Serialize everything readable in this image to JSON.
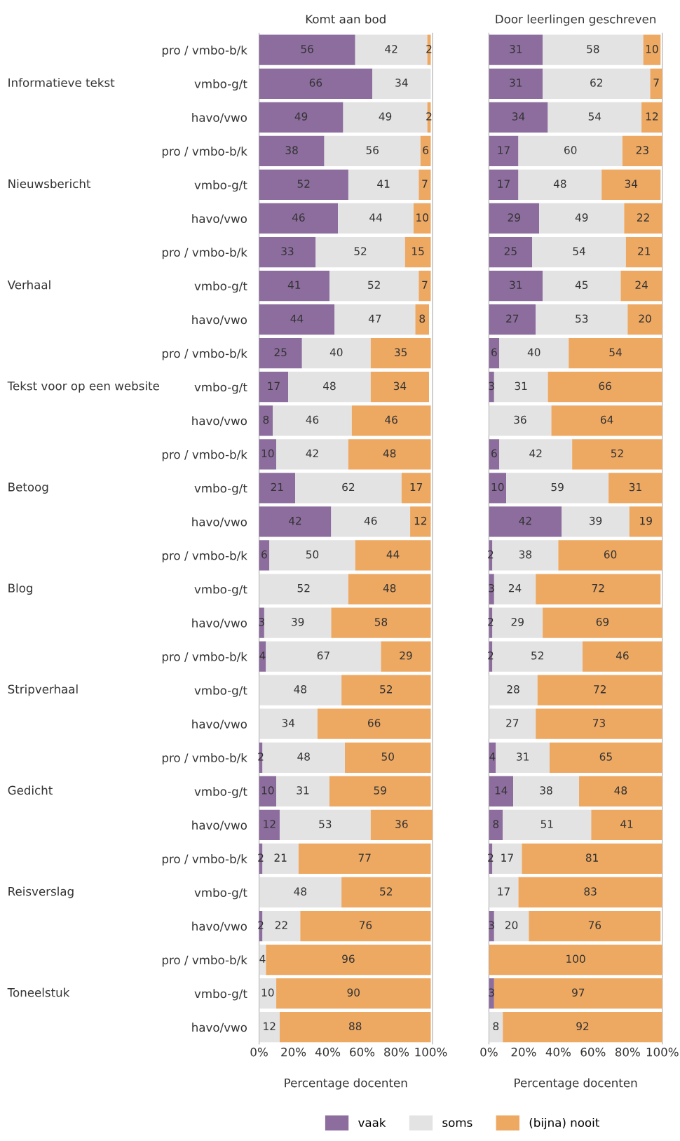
{
  "chart_data": [
    {
      "type": "bar",
      "orientation": "horizontal",
      "stacked": true,
      "title": "Komt aan bod",
      "xlabel": "Percentage docenten",
      "categories": [
        "pro / vmbo-b/k",
        "vmbo-g/t",
        "havo/vwo",
        "pro / vmbo-b/k",
        "vmbo-g/t",
        "havo/vwo",
        "pro / vmbo-b/k",
        "vmbo-g/t",
        "havo/vwo",
        "pro / vmbo-b/k",
        "vmbo-g/t",
        "havo/vwo",
        "pro / vmbo-b/k",
        "vmbo-g/t",
        "havo/vwo",
        "pro / vmbo-b/k",
        "vmbo-g/t",
        "havo/vwo",
        "pro / vmbo-b/k",
        "vmbo-g/t",
        "havo/vwo",
        "pro / vmbo-b/k",
        "vmbo-g/t",
        "havo/vwo",
        "pro / vmbo-b/k",
        "vmbo-g/t",
        "havo/vwo",
        "pro / vmbo-b/k",
        "vmbo-g/t",
        "havo/vwo"
      ],
      "annotations": [
        "Informatieve tekst",
        "Nieuwsbericht",
        "Verhaal",
        "Tekst voor op een website",
        "Betoog",
        "Blog",
        "Stripverhaal",
        "Gedicht",
        "Reisverslag",
        "Toneelstuk"
      ],
      "xlim": [
        0,
        101
      ],
      "xticks": [
        {
          "value": 0,
          "label": "0%"
        },
        {
          "value": 20,
          "label": "20%"
        },
        {
          "value": 40,
          "label": "40%"
        },
        {
          "value": 60,
          "label": "60%"
        },
        {
          "value": 80,
          "label": "80%"
        },
        {
          "value": 100,
          "label": "100%"
        }
      ],
      "series": [
        {
          "color": "#8c6d9e",
          "values": [
            56,
            66,
            49,
            38,
            52,
            46,
            33,
            41,
            44,
            25,
            17,
            8,
            10,
            21,
            42,
            6,
            0,
            3,
            4,
            0,
            0,
            2,
            10,
            12,
            2,
            0,
            2,
            0,
            0,
            0
          ],
          "value_labels": [
            "56",
            "66",
            "49",
            "38",
            "52",
            "46",
            "33",
            "41",
            "44",
            "25",
            "17",
            "8",
            "10",
            "21",
            "42",
            "6",
            null,
            "3",
            "4",
            null,
            null,
            "2",
            "10",
            "12",
            "2",
            null,
            "2",
            null,
            null,
            null
          ]
        },
        {
          "color": "#e3e3e3",
          "values": [
            42,
            34,
            49,
            56,
            41,
            44,
            52,
            52,
            47,
            40,
            48,
            46,
            42,
            62,
            46,
            50,
            52,
            39,
            67,
            48,
            34,
            48,
            31,
            53,
            21,
            48,
            22,
            4,
            10,
            12
          ],
          "value_labels": [
            "42",
            "34",
            "49",
            "56",
            "41",
            "44",
            "52",
            "52",
            "47",
            "40",
            "48",
            "46",
            "42",
            "62",
            "46",
            "50",
            "52",
            "39",
            "67",
            "48",
            "34",
            "48",
            "31",
            "53",
            "21",
            "48",
            "22",
            "4",
            "10",
            "12"
          ]
        },
        {
          "color": "#eda862",
          "values": [
            2,
            0,
            2,
            6,
            7,
            10,
            15,
            7,
            8,
            35,
            34,
            46,
            48,
            17,
            12,
            44,
            48,
            58,
            29,
            52,
            66,
            50,
            59,
            36,
            77,
            52,
            76,
            96,
            90,
            88
          ],
          "value_labels": [
            "2",
            null,
            "2",
            "6",
            "7",
            "10",
            "15",
            "7",
            "8",
            "35",
            "34",
            "46",
            "48",
            "17",
            "12",
            "44",
            "48",
            "58",
            "29",
            "52",
            "66",
            "50",
            "59",
            "36",
            "77",
            "52",
            "76",
            "96",
            "90",
            "88"
          ]
        }
      ]
    },
    {
      "type": "bar",
      "orientation": "horizontal",
      "stacked": true,
      "title": "Door leerlingen geschreven",
      "xlabel": "Percentage docenten",
      "tick_labels": "x",
      "legend": "bottom",
      "categories": [
        null,
        null,
        null,
        null,
        null,
        null,
        null,
        null,
        null,
        null,
        null,
        null,
        null,
        null,
        null,
        null,
        null,
        null,
        null,
        null,
        null,
        null,
        null,
        null,
        null,
        null,
        null,
        null,
        null,
        null
      ],
      "xlim": [
        0,
        100
      ],
      "xticks": [
        {
          "value": 0,
          "label": "0%"
        },
        {
          "value": 20,
          "label": "20%"
        },
        {
          "value": 40,
          "label": "40%"
        },
        {
          "value": 60,
          "label": "60%"
        },
        {
          "value": 80,
          "label": "80%"
        },
        {
          "value": 100,
          "label": "100%"
        }
      ],
      "series": [
        {
          "name": "vaak",
          "color": "#8c6d9e",
          "values": [
            31,
            31,
            34,
            17,
            17,
            29,
            25,
            31,
            27,
            6,
            3,
            0,
            6,
            10,
            42,
            2,
            3,
            2,
            2,
            0,
            0,
            4,
            14,
            8,
            2,
            0,
            3,
            0,
            3,
            0
          ],
          "value_labels": [
            "31",
            "31",
            "34",
            "17",
            "17",
            "29",
            "25",
            "31",
            "27",
            "6",
            "3",
            null,
            "6",
            "10",
            "42",
            "2",
            "3",
            "2",
            "2",
            null,
            null,
            "4",
            "14",
            "8",
            "2",
            null,
            "3",
            null,
            "3",
            null
          ]
        },
        {
          "name": "soms",
          "color": "#e3e3e3",
          "values": [
            58,
            62,
            54,
            60,
            48,
            49,
            54,
            45,
            53,
            40,
            31,
            36,
            42,
            59,
            39,
            38,
            24,
            29,
            52,
            28,
            27,
            31,
            38,
            51,
            17,
            17,
            20,
            0,
            0,
            8
          ],
          "value_labels": [
            "58",
            "62",
            "54",
            "60",
            "48",
            "49",
            "54",
            "45",
            "53",
            "40",
            "31",
            "36",
            "42",
            "59",
            "39",
            "38",
            "24",
            "29",
            "52",
            "28",
            "27",
            "31",
            "38",
            "51",
            "17",
            "17",
            "20",
            null,
            null,
            "8"
          ]
        },
        {
          "name": "(bijna) nooit",
          "color": "#eda862",
          "values": [
            10,
            7,
            12,
            23,
            34,
            22,
            21,
            24,
            20,
            54,
            66,
            64,
            52,
            31,
            19,
            60,
            72,
            69,
            46,
            72,
            73,
            65,
            48,
            41,
            81,
            83,
            76,
            100,
            97,
            92
          ],
          "value_labels": [
            "10",
            "7",
            "12",
            "23",
            "34",
            "22",
            "21",
            "24",
            "20",
            "54",
            "66",
            "64",
            "52",
            "31",
            "19",
            "60",
            "72",
            "69",
            "46",
            "72",
            "73",
            "65",
            "48",
            "41",
            "81",
            "83",
            "76",
            "100",
            "97",
            "92"
          ]
        }
      ]
    }
  ]
}
